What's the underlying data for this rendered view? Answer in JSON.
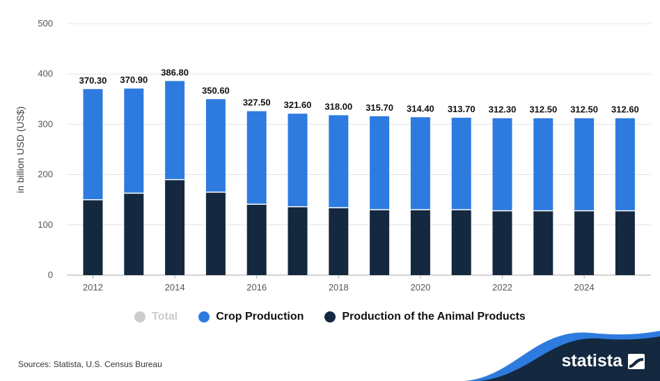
{
  "chart_data": {
    "type": "bar",
    "stacked": true,
    "categories": [
      "2012",
      "2013",
      "2014",
      "2015",
      "2016",
      "2017",
      "2018",
      "2019",
      "2020",
      "2021",
      "2022",
      "2023",
      "2024",
      "2025"
    ],
    "series": [
      {
        "name": "Total",
        "values": [
          370.3,
          370.9,
          386.8,
          350.6,
          327.5,
          321.6,
          318.0,
          315.7,
          314.4,
          313.7,
          312.3,
          312.5,
          312.5,
          312.6
        ],
        "color": "#cccccc"
      },
      {
        "name": "Crop Production",
        "values": [
          220,
          208,
          196,
          185,
          185,
          185,
          184,
          186,
          184,
          183,
          184,
          184,
          184,
          184
        ],
        "color": "#2e7be0"
      },
      {
        "name": "Production of the Animal Products",
        "values": [
          150,
          163,
          190,
          165,
          141,
          136,
          134,
          130,
          130,
          130,
          128,
          128,
          128,
          128
        ],
        "color": "#14283f"
      }
    ],
    "total_labels": [
      "370.30",
      "370.90",
      "386.80",
      "350.60",
      "327.50",
      "321.60",
      "318.00",
      "315.70",
      "314.40",
      "313.70",
      "312.30",
      "312.50",
      "312.50",
      "312.60"
    ],
    "x_tick_labels": [
      "2012",
      "",
      "2014",
      "",
      "2016",
      "",
      "2018",
      "",
      "2020",
      "",
      "2022",
      "",
      "2024",
      ""
    ],
    "y_ticks": [
      0,
      100,
      200,
      300,
      400,
      500
    ],
    "ylim": [
      0,
      500
    ],
    "ylabel": "in billion USD (US$)",
    "xlabel": "",
    "title": "",
    "grid": true,
    "legend_position": "bottom"
  },
  "legend": {
    "total": {
      "label": "Total",
      "color": "#cccccc"
    },
    "crop": {
      "label": "Crop Production",
      "color": "#2e7be0"
    },
    "animal": {
      "label": "Production of the Animal Products",
      "color": "#14283f"
    }
  },
  "source": "Sources: Statista, U.S. Census Bureau",
  "brand": {
    "name": "statista",
    "color": "#14283f"
  }
}
